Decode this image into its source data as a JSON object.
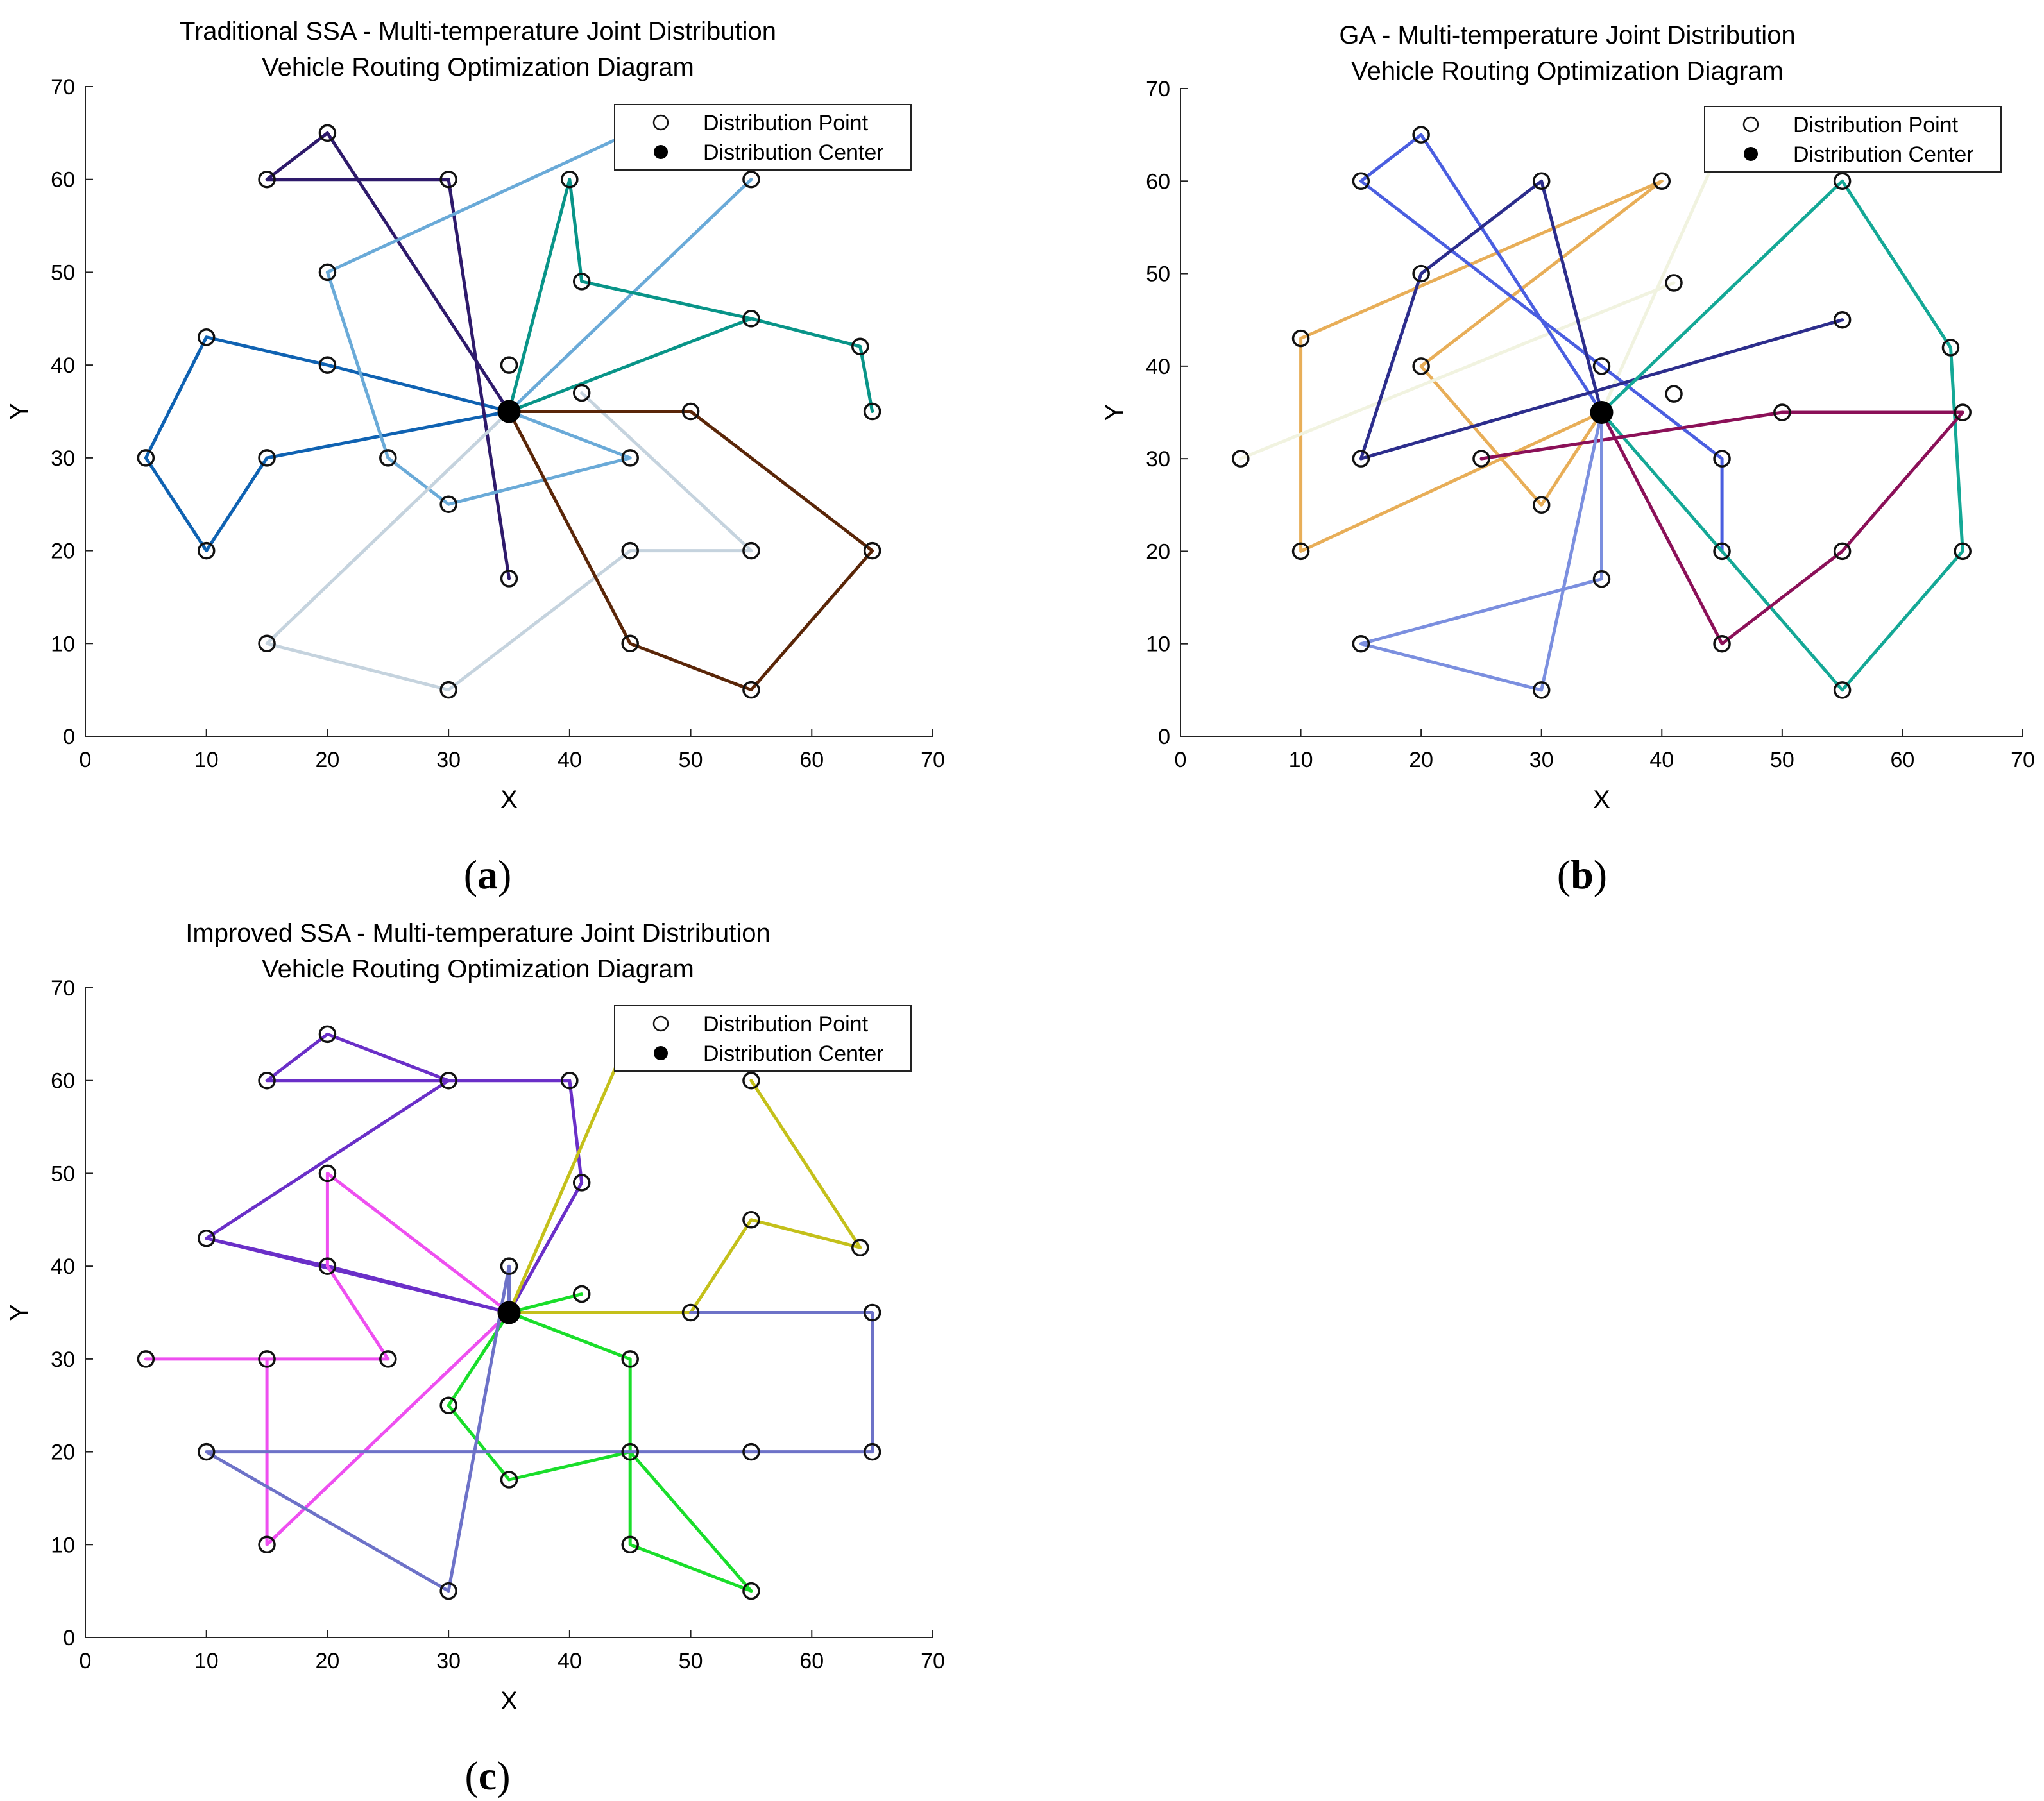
{
  "figure": {
    "panels": [
      {
        "label_letter": "a"
      },
      {
        "label_letter": "b"
      },
      {
        "label_letter": "c"
      }
    ]
  },
  "chart_data": [
    {
      "type": "scatter",
      "panel": "a",
      "title_line1": "Traditional SSA - Multi-temperature Joint Distribution",
      "title_line2": "Vehicle Routing Optimization Diagram",
      "xlabel": "X",
      "ylabel": "Y",
      "xlim": [
        0,
        70
      ],
      "ylim": [
        0,
        70
      ],
      "xticks": [
        0,
        10,
        20,
        30,
        40,
        50,
        60,
        70
      ],
      "yticks": [
        0,
        10,
        20,
        30,
        40,
        50,
        60,
        70
      ],
      "legend": {
        "position": "top-right",
        "entries": [
          "Distribution Point",
          "Distribution Center"
        ]
      },
      "center": [
        35,
        35
      ],
      "points": [
        [
          5,
          30
        ],
        [
          10,
          43
        ],
        [
          10,
          20
        ],
        [
          15,
          30
        ],
        [
          20,
          40
        ],
        [
          15,
          60
        ],
        [
          20,
          65
        ],
        [
          30,
          60
        ],
        [
          20,
          50
        ],
        [
          25,
          30
        ],
        [
          30,
          25
        ],
        [
          45,
          30
        ],
        [
          35,
          40
        ],
        [
          40,
          60
        ],
        [
          41,
          49
        ],
        [
          55,
          60
        ],
        [
          55,
          45
        ],
        [
          64,
          42
        ],
        [
          65,
          35
        ],
        [
          41,
          37
        ],
        [
          55,
          20
        ],
        [
          45,
          20
        ],
        [
          15,
          10
        ],
        [
          30,
          5
        ],
        [
          35,
          17
        ],
        [
          50,
          35
        ],
        [
          65,
          20
        ],
        [
          55,
          5
        ],
        [
          45,
          10
        ]
      ],
      "routes": [
        {
          "color": "#0f62b2",
          "points": [
            [
              35,
              35
            ],
            [
              20,
              40
            ],
            [
              10,
              43
            ],
            [
              5,
              30
            ],
            [
              10,
              20
            ],
            [
              15,
              30
            ],
            [
              35,
              35
            ]
          ]
        },
        {
          "color": "#2e1a6b",
          "points": [
            [
              35,
              35
            ],
            [
              20,
              65
            ],
            [
              15,
              60
            ],
            [
              30,
              60
            ],
            [
              35,
              17
            ]
          ]
        },
        {
          "color": "#6aaad8",
          "points": [
            [
              45,
              65
            ],
            [
              20,
              50
            ],
            [
              25,
              30
            ],
            [
              30,
              25
            ],
            [
              45,
              30
            ],
            [
              35,
              35
            ],
            [
              55,
              60
            ]
          ]
        },
        {
          "color": "#089488",
          "points": [
            [
              35,
              35
            ],
            [
              40,
              60
            ],
            [
              41,
              49
            ],
            [
              55,
              45
            ],
            [
              64,
              42
            ],
            [
              65,
              35
            ]
          ]
        },
        {
          "color": "#089488",
          "points": [
            [
              35,
              35
            ],
            [
              55,
              45
            ]
          ]
        },
        {
          "color": "#c5d3de",
          "points": [
            [
              35,
              35
            ],
            [
              15,
              10
            ],
            [
              30,
              5
            ],
            [
              45,
              20
            ],
            [
              55,
              20
            ]
          ]
        },
        {
          "color": "#c5d3de",
          "points": [
            [
              41,
              37
            ],
            [
              55,
              20
            ]
          ]
        },
        {
          "color": "#5a2608",
          "points": [
            [
              35,
              35
            ],
            [
              50,
              35
            ],
            [
              65,
              20
            ],
            [
              55,
              5
            ],
            [
              45,
              10
            ],
            [
              35,
              35
            ]
          ]
        }
      ]
    },
    {
      "type": "scatter",
      "panel": "b",
      "title_line1": "GA - Multi-temperature Joint Distribution",
      "title_line2": "Vehicle Routing Optimization Diagram",
      "xlabel": "X",
      "ylabel": "Y",
      "xlim": [
        0,
        70
      ],
      "ylim": [
        0,
        70
      ],
      "xticks": [
        0,
        10,
        20,
        30,
        40,
        50,
        60,
        70
      ],
      "yticks": [
        0,
        10,
        20,
        30,
        40,
        50,
        60,
        70
      ],
      "legend": {
        "position": "top-right",
        "entries": [
          "Distribution Point",
          "Distribution Center"
        ]
      },
      "center": [
        35,
        35
      ],
      "points": [
        [
          5,
          30
        ],
        [
          10,
          43
        ],
        [
          10,
          20
        ],
        [
          15,
          60
        ],
        [
          20,
          65
        ],
        [
          30,
          60
        ],
        [
          20,
          50
        ],
        [
          15,
          30
        ],
        [
          20,
          40
        ],
        [
          25,
          30
        ],
        [
          30,
          25
        ],
        [
          40,
          60
        ],
        [
          41,
          49
        ],
        [
          35,
          40
        ],
        [
          41,
          37
        ],
        [
          55,
          45
        ],
        [
          45,
          30
        ],
        [
          45,
          20
        ],
        [
          55,
          60
        ],
        [
          64,
          42
        ],
        [
          65,
          35
        ],
        [
          65,
          20
        ],
        [
          55,
          20
        ],
        [
          50,
          35
        ],
        [
          45,
          10
        ],
        [
          55,
          5
        ],
        [
          35,
          17
        ],
        [
          15,
          10
        ],
        [
          30,
          5
        ]
      ],
      "routes": [
        {
          "color": "#e8ae58",
          "points": [
            [
              35,
              35
            ],
            [
              10,
              20
            ],
            [
              10,
              43
            ],
            [
              40,
              60
            ],
            [
              20,
              40
            ],
            [
              30,
              25
            ],
            [
              35,
              35
            ]
          ]
        },
        {
          "color": "#f1f3e0",
          "points": [
            [
              5,
              30
            ],
            [
              41,
              49
            ]
          ]
        },
        {
          "color": "#f1f3e0",
          "points": [
            [
              35,
              35
            ],
            [
              45,
              64
            ]
          ]
        },
        {
          "color": "#4a5ee0",
          "points": [
            [
              35,
              35
            ],
            [
              20,
              65
            ],
            [
              15,
              60
            ],
            [
              45,
              30
            ],
            [
              45,
              20
            ]
          ]
        },
        {
          "color": "#2c2d8c",
          "points": [
            [
              35,
              35
            ],
            [
              30,
              60
            ],
            [
              20,
              50
            ],
            [
              15,
              30
            ],
            [
              55,
              45
            ]
          ]
        },
        {
          "color": "#14a896",
          "points": [
            [
              35,
              35
            ],
            [
              55,
              60
            ],
            [
              64,
              42
            ],
            [
              65,
              20
            ],
            [
              55,
              5
            ],
            [
              35,
              35
            ]
          ]
        },
        {
          "color": "#8b1058",
          "points": [
            [
              25,
              30
            ],
            [
              50,
              35
            ],
            [
              65,
              35
            ],
            [
              55,
              20
            ],
            [
              45,
              10
            ],
            [
              35,
              35
            ]
          ]
        },
        {
          "color": "#7b8fdf",
          "points": [
            [
              35,
              35
            ],
            [
              35,
              17
            ],
            [
              15,
              10
            ],
            [
              30,
              5
            ],
            [
              35,
              35
            ]
          ]
        }
      ]
    },
    {
      "type": "scatter",
      "panel": "c",
      "title_line1": "Improved SSA - Multi-temperature Joint Distribution",
      "title_line2": "Vehicle Routing Optimization Diagram",
      "xlabel": "X",
      "ylabel": "Y",
      "xlim": [
        0,
        70
      ],
      "ylim": [
        0,
        70
      ],
      "xticks": [
        0,
        10,
        20,
        30,
        40,
        50,
        60,
        70
      ],
      "yticks": [
        0,
        10,
        20,
        30,
        40,
        50,
        60,
        70
      ],
      "legend": {
        "position": "top-right",
        "entries": [
          "Distribution Point",
          "Distribution Center"
        ]
      },
      "center": [
        35,
        35
      ],
      "points": [
        [
          20,
          65
        ],
        [
          15,
          60
        ],
        [
          30,
          60
        ],
        [
          40,
          60
        ],
        [
          41,
          49
        ],
        [
          10,
          43
        ],
        [
          20,
          40
        ],
        [
          20,
          50
        ],
        [
          25,
          30
        ],
        [
          5,
          30
        ],
        [
          15,
          30
        ],
        [
          15,
          10
        ],
        [
          35,
          40
        ],
        [
          41,
          37
        ],
        [
          30,
          25
        ],
        [
          35,
          17
        ],
        [
          45,
          30
        ],
        [
          45,
          20
        ],
        [
          45,
          10
        ],
        [
          55,
          5
        ],
        [
          50,
          35
        ],
        [
          55,
          45
        ],
        [
          64,
          42
        ],
        [
          55,
          60
        ],
        [
          65,
          35
        ],
        [
          65,
          20
        ],
        [
          55,
          20
        ],
        [
          10,
          20
        ],
        [
          30,
          5
        ]
      ],
      "routes": [
        {
          "color": "#6a2fc8",
          "points": [
            [
              35,
              35
            ],
            [
              10,
              43
            ],
            [
              30,
              60
            ],
            [
              20,
              65
            ],
            [
              15,
              60
            ],
            [
              40,
              60
            ],
            [
              41,
              49
            ],
            [
              35,
              35
            ]
          ]
        },
        {
          "color": "#6a2fc8",
          "points": [
            [
              10,
              43
            ],
            [
              20,
              40
            ],
            [
              35,
              35
            ]
          ]
        },
        {
          "color": "#ee4ff0",
          "points": [
            [
              35,
              35
            ],
            [
              20,
              50
            ],
            [
              20,
              40
            ],
            [
              25,
              30
            ],
            [
              5,
              30
            ],
            [
              15,
              30
            ],
            [
              15,
              10
            ],
            [
              35,
              35
            ]
          ]
        },
        {
          "color": "#c4c01a",
          "points": [
            [
              35,
              35
            ],
            [
              44,
              62
            ]
          ]
        },
        {
          "color": "#c4c01a",
          "points": [
            [
              35,
              35
            ],
            [
              50,
              35
            ],
            [
              55,
              45
            ],
            [
              64,
              42
            ],
            [
              55,
              60
            ]
          ]
        },
        {
          "color": "#19de2a",
          "points": [
            [
              35,
              35
            ],
            [
              41,
              37
            ]
          ]
        },
        {
          "color": "#19de2a",
          "points": [
            [
              35,
              35
            ],
            [
              45,
              30
            ],
            [
              45,
              20
            ],
            [
              45,
              10
            ],
            [
              55,
              5
            ],
            [
              45,
              20
            ],
            [
              35,
              17
            ],
            [
              30,
              25
            ],
            [
              35,
              35
            ]
          ]
        },
        {
          "color": "#6d72c8",
          "points": [
            [
              35,
              35
            ],
            [
              35,
              40
            ],
            [
              30,
              5
            ],
            [
              10,
              20
            ],
            [
              65,
              20
            ],
            [
              65,
              35
            ],
            [
              50,
              35
            ]
          ]
        }
      ]
    }
  ]
}
